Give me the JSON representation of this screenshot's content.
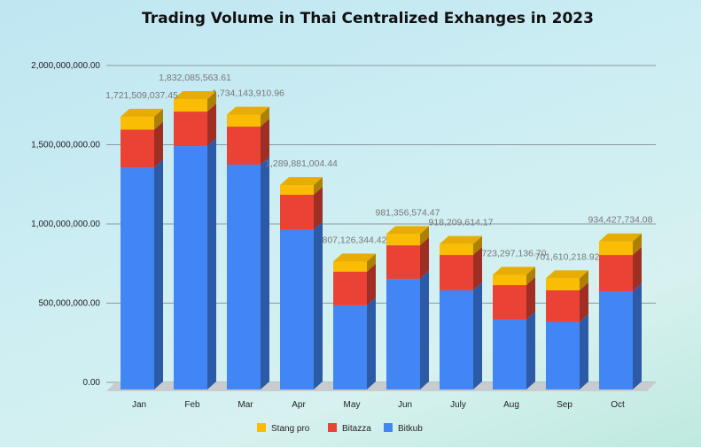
{
  "chart_data": {
    "type": "bar",
    "stacked": true,
    "three_d": true,
    "title": "Trading Volume in Thai Centralized Exhanges in 2023",
    "xlabel": "",
    "ylabel": "",
    "ylim": [
      0,
      2000000000
    ],
    "yticks": [
      0,
      500000000,
      1000000000,
      1500000000,
      2000000000
    ],
    "ytick_labels": [
      "0.00",
      "500,000,000.00",
      "1,000,000,000.00",
      "1,500,000,000.00",
      "2,000,000,000.00"
    ],
    "grid": true,
    "legend_position": "bottom",
    "categories": [
      "Jan",
      "Feb",
      "Mar",
      "Apr",
      "May",
      "Jun",
      "July",
      "Aug",
      "Sep",
      "Oct"
    ],
    "series": [
      {
        "name": "Bitkub",
        "color": "#4285f4",
        "values": [
          1400000000,
          1536000000,
          1419000000,
          1006000000,
          531000000,
          698000000,
          626000000,
          441000000,
          425000000,
          620000000
        ]
      },
      {
        "name": "Bitazza",
        "color": "#ea4335",
        "values": [
          240000000,
          218000000,
          240000000,
          223000000,
          212000000,
          212000000,
          223000000,
          218000000,
          201000000,
          229000000
        ]
      },
      {
        "name": "Stang pro",
        "color": "#fbbc04",
        "values": [
          81509037,
          78085564,
          75143911,
          60881004,
          64126344,
          71356574,
          69209614,
          64297137,
          75610219,
          85427734
        ]
      }
    ],
    "totals": [
      1721509037.45,
      1832085563.61,
      1734143910.96,
      1289881004.44,
      807126344.42,
      981356574.47,
      918209614.17,
      723297136.7,
      701610218.92,
      934427734.08
    ],
    "total_labels": [
      "1,721,509,037.45",
      "1,832,085,563.61",
      "1,734,143,910.96",
      "1,289,881,004.44",
      "807,126,344.42",
      "981,356,574.47",
      "918,209,614.17",
      "723,297,136.70",
      "701,610,218.92",
      "934,427,734.08"
    ],
    "legend_order": [
      "Stang pro",
      "Bitazza",
      "Bitkub"
    ]
  }
}
